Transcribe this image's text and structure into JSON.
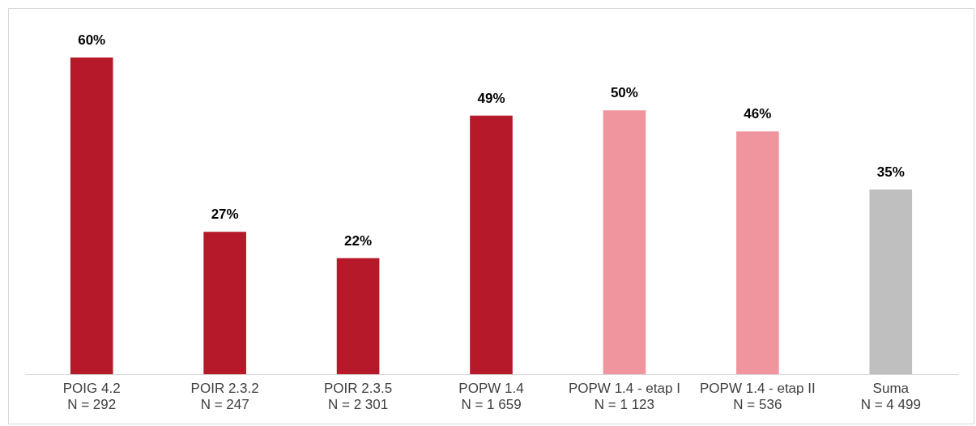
{
  "chart_data": {
    "type": "bar",
    "categories": [
      "POIG 4.2\nN = 292",
      "POIR 2.3.2\nN = 247",
      "POIR 2.3.5\nN = 2 301",
      "POPW 1.4\nN = 1 659",
      "POPW 1.4 - etap I\nN = 1 123",
      "POPW 1.4 - etap II\nN = 536",
      "Suma\nN = 4 499"
    ],
    "values": [
      60,
      27,
      22,
      49,
      50,
      46,
      35
    ],
    "colors": [
      "#b5192a",
      "#b5192a",
      "#b5192a",
      "#b5192a",
      "#f0959d",
      "#f0959d",
      "#bfbfbf"
    ],
    "value_labels": [
      "60%",
      "27%",
      "22%",
      "49%",
      "50%",
      "46%",
      "35%"
    ],
    "tick_labels": "x"
  }
}
